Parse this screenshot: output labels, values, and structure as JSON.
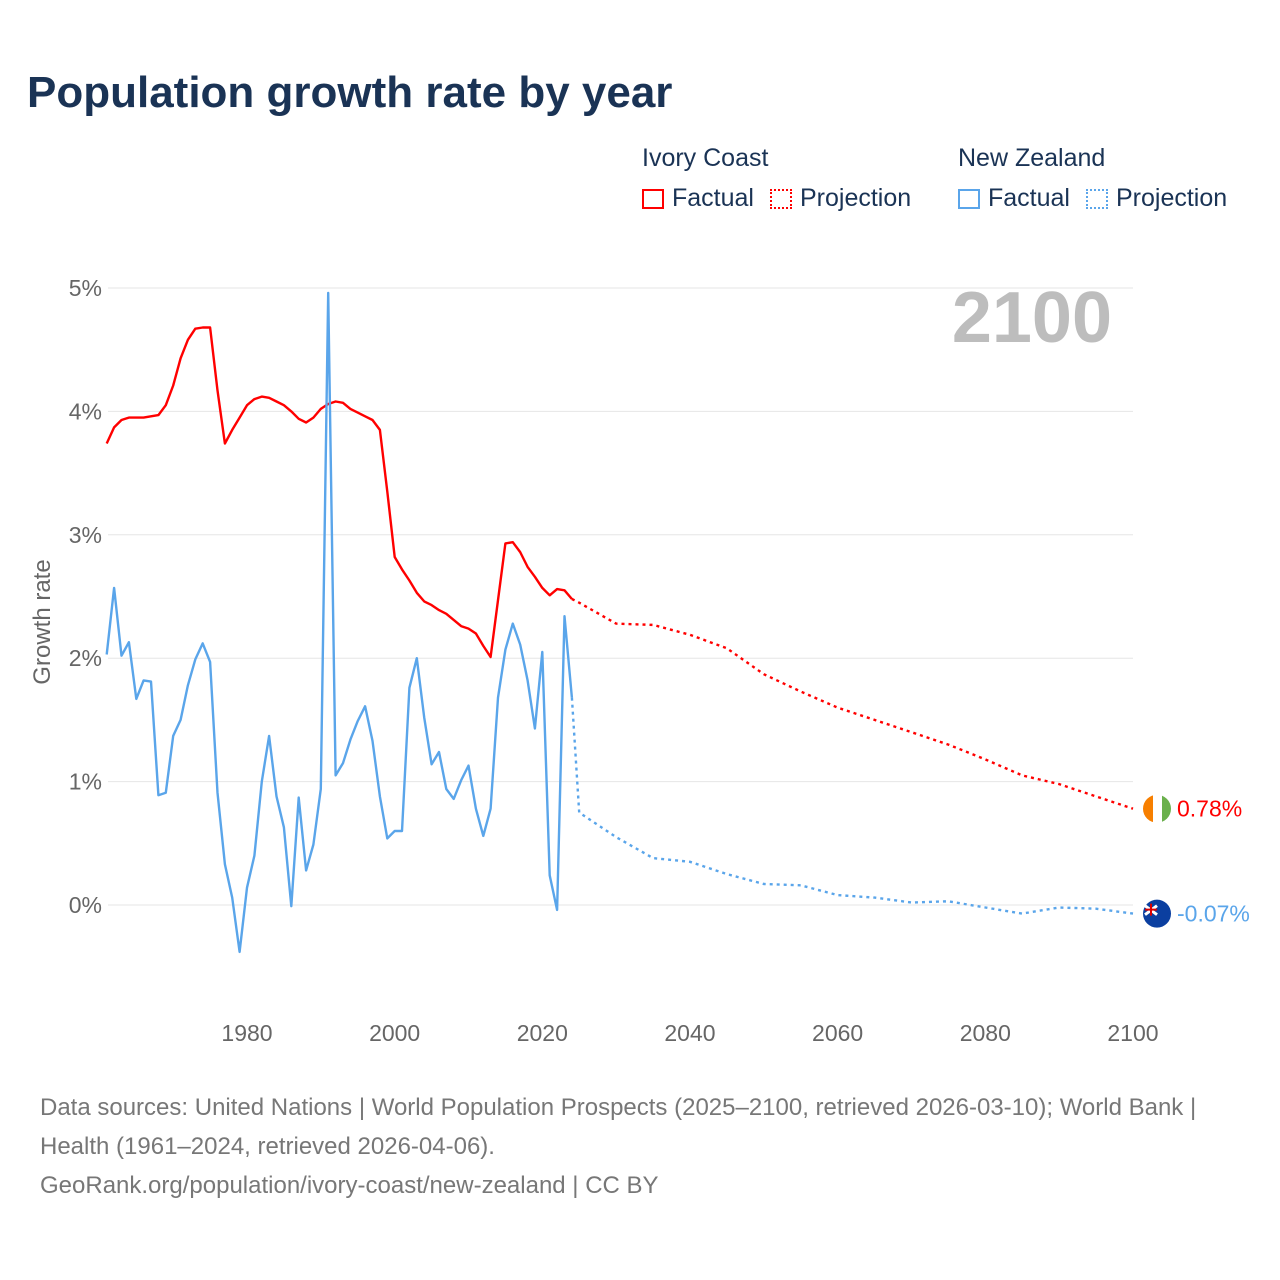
{
  "title": "Population growth rate by year",
  "legend": {
    "groups": [
      {
        "name": "Ivory Coast",
        "factual": "Factual",
        "projection": "Projection",
        "color": "#ff0000"
      },
      {
        "name": "New Zealand",
        "factual": "Factual",
        "projection": "Projection",
        "color": "#5aa5ea"
      }
    ]
  },
  "footer": {
    "sources": "Data sources: United Nations | World Population Prospects (2025–2100, retrieved 2026-03-10); World Bank | Health (1961–2024, retrieved 2026-04-06).",
    "url": "GeoRank.org/population/ivory-coast/new-zealand | CC BY"
  },
  "chart_data": {
    "type": "line",
    "title": "Population growth rate by year",
    "ylabel": "Growth rate",
    "xlabel": "",
    "current_year_label": "2100",
    "xlim": [
      1961,
      2100
    ],
    "ylim": [
      -0.8,
      5
    ],
    "x_ticks": [
      1980,
      2000,
      2020,
      2040,
      2060,
      2080,
      2100
    ],
    "x_tick_labels": [
      "1980",
      "2000",
      "2020",
      "2040",
      "2060",
      "2080",
      "2100"
    ],
    "y_ticks": [
      0,
      1,
      2,
      3,
      4,
      5
    ],
    "y_tick_labels": [
      "0%",
      "1%",
      "2%",
      "3%",
      "4%",
      "5%"
    ],
    "grid": true,
    "legend_position": "top-right",
    "series": [
      {
        "name": "Ivory Coast",
        "kind": "factual",
        "color": "#ff0000",
        "end_label": "",
        "start_year": 1961,
        "values": [
          3.74,
          3.87,
          3.93,
          3.95,
          3.95,
          3.95,
          3.96,
          3.97,
          4.05,
          4.21,
          4.43,
          4.58,
          4.67,
          4.68,
          4.68,
          4.17,
          3.74,
          3.85,
          3.95,
          4.05,
          4.1,
          4.12,
          4.11,
          4.08,
          4.05,
          4.0,
          3.94,
          3.91,
          3.95,
          4.02,
          4.06,
          4.08,
          4.07,
          4.02,
          3.99,
          3.96,
          3.93,
          3.85,
          3.35,
          2.82,
          2.72,
          2.63,
          2.53,
          2.46,
          2.43,
          2.39,
          2.36,
          2.31,
          2.26,
          2.24,
          2.2,
          2.1,
          2.01,
          2.47,
          2.93,
          2.94,
          2.86,
          2.74,
          2.66,
          2.57,
          2.51,
          2.56,
          2.55,
          2.48
        ]
      },
      {
        "name": "Ivory Coast",
        "kind": "projection",
        "color": "#ff0000",
        "end_label": "0.78%",
        "x": [
          2024,
          2025,
          2030,
          2035,
          2040,
          2045,
          2050,
          2055,
          2060,
          2065,
          2070,
          2075,
          2080,
          2085,
          2090,
          2095,
          2100
        ],
        "values": [
          2.48,
          2.45,
          2.28,
          2.27,
          2.19,
          2.08,
          1.87,
          1.73,
          1.6,
          1.5,
          1.4,
          1.3,
          1.18,
          1.05,
          0.98,
          0.88,
          0.78
        ]
      },
      {
        "name": "New Zealand",
        "kind": "factual",
        "color": "#5aa5ea",
        "end_label": "",
        "start_year": 1961,
        "values": [
          2.03,
          2.57,
          2.02,
          2.13,
          1.67,
          1.82,
          1.81,
          0.89,
          0.91,
          1.37,
          1.5,
          1.78,
          1.99,
          2.12,
          1.97,
          0.91,
          0.33,
          0.06,
          -0.38,
          0.14,
          0.4,
          1.0,
          1.37,
          0.88,
          0.63,
          -0.01,
          0.87,
          0.28,
          0.49,
          0.94,
          4.96,
          1.05,
          1.15,
          1.34,
          1.49,
          1.61,
          1.33,
          0.88,
          0.54,
          0.6,
          0.6,
          1.76,
          2.0,
          1.52,
          1.14,
          1.24,
          0.94,
          0.86,
          1.01,
          1.13,
          0.78,
          0.56,
          0.78,
          1.68,
          2.07,
          2.28,
          2.11,
          1.82,
          1.43,
          2.05,
          0.24,
          -0.04,
          2.34,
          1.68
        ]
      },
      {
        "name": "New Zealand",
        "kind": "projection",
        "color": "#5aa5ea",
        "end_label": "-0.07%",
        "x": [
          2024,
          2025,
          2030,
          2035,
          2040,
          2045,
          2050,
          2055,
          2060,
          2065,
          2070,
          2075,
          2080,
          2085,
          2090,
          2095,
          2100
        ],
        "values": [
          1.68,
          0.75,
          0.55,
          0.38,
          0.35,
          0.25,
          0.17,
          0.16,
          0.08,
          0.06,
          0.02,
          0.03,
          -0.02,
          -0.07,
          -0.02,
          -0.03,
          -0.07
        ]
      }
    ]
  }
}
